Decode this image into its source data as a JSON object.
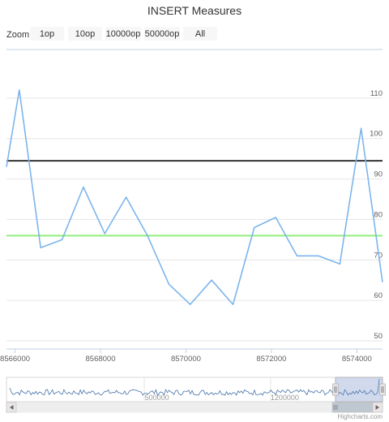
{
  "chart_data": {
    "type": "line",
    "title": "INSERT Measures",
    "x": [
      8565800,
      8566100,
      8566600,
      8567100,
      8567600,
      8568100,
      8568600,
      8569100,
      8569600,
      8570100,
      8570600,
      8571100,
      8571600,
      8572100,
      8572600,
      8573100,
      8573600,
      8574100,
      8574600
    ],
    "series": [
      {
        "values": [
          93,
          112,
          73,
          75,
          88,
          76.5,
          85.5,
          76,
          64,
          59,
          65,
          59,
          78,
          80.5,
          71,
          71,
          69,
          102.5,
          64.5
        ],
        "color": "#7cb5ec"
      }
    ],
    "plot_lines": [
      {
        "value": 94.5,
        "color": "#333333"
      },
      {
        "value": 76,
        "color": "#90ed7d"
      }
    ],
    "xlim": [
      8565800,
      8574600
    ],
    "ylim": [
      48,
      122
    ],
    "x_ticks": [
      "8566000",
      "8568000",
      "8570000",
      "8572000",
      "8574000"
    ],
    "x_tick_values": [
      8566000,
      8568000,
      8570000,
      8572000,
      8574000
    ],
    "y_ticks": [
      "50",
      "60",
      "70",
      "80",
      "90",
      "100",
      "110"
    ],
    "y_tick_values": [
      50,
      60,
      70,
      80,
      90,
      100,
      110
    ],
    "y_axis_side": "right",
    "grid": true,
    "navigator": {
      "labels": [
        "500000",
        "1200000"
      ],
      "label_values": [
        0.4,
        0.74
      ],
      "selected_range": [
        0.875,
        1.0
      ],
      "series_color": "#4572a7"
    }
  },
  "rangeSelector": {
    "zoom_label": "Zoom",
    "buttons": [
      "1op",
      "10op",
      "10000op",
      "50000op",
      "All"
    ]
  },
  "credits": "Highcharts.com",
  "icons": {
    "scroll_left": "triangle-left-icon",
    "scroll_right": "triangle-right-icon",
    "handle": "grip-icon"
  }
}
